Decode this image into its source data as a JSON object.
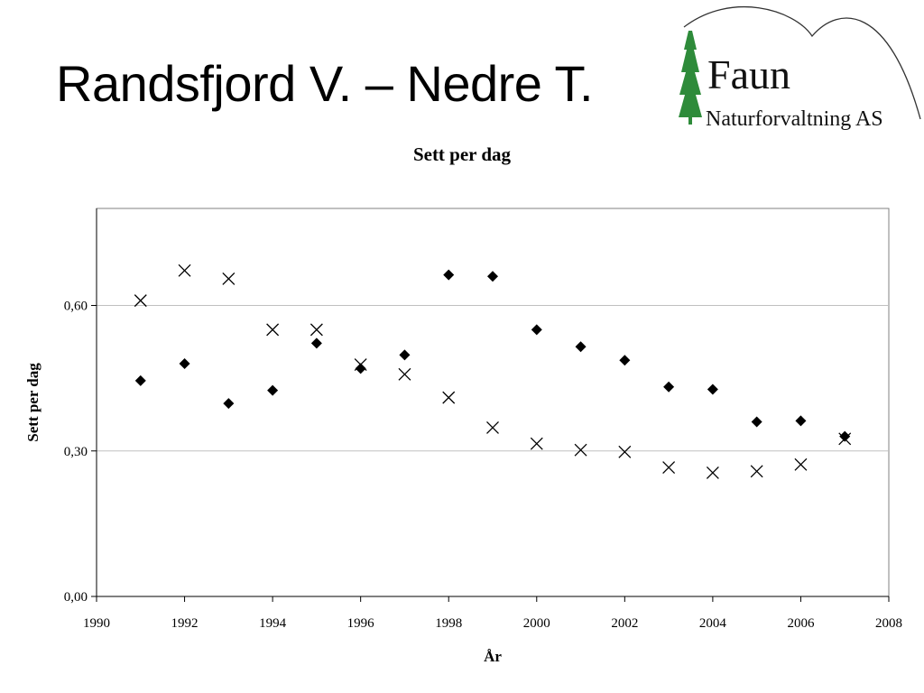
{
  "slide": {
    "title": "Randsfjord V. – Nedre T."
  },
  "logo": {
    "name": "Faun",
    "subtitle": "Naturforvaltning AS"
  },
  "chart_data": {
    "type": "scatter",
    "title": "Sett per dag",
    "xlabel": "År",
    "ylabel": "Sett per dag",
    "xlim": [
      1990,
      2008
    ],
    "ylim": [
      0,
      0.8
    ],
    "x_ticks": [
      "1990",
      "1992",
      "1994",
      "1996",
      "1998",
      "2000",
      "2002",
      "2004",
      "2006",
      "2008"
    ],
    "y_ticks": [
      "0,00",
      "0,30",
      "0,60"
    ],
    "grid": "horizontal",
    "legend": "none",
    "series": [
      {
        "marker": "diamond",
        "color": "#000000",
        "points": [
          {
            "x": 1991,
            "y": 0.445
          },
          {
            "x": 1992,
            "y": 0.48
          },
          {
            "x": 1993,
            "y": 0.398
          },
          {
            "x": 1994,
            "y": 0.425
          },
          {
            "x": 1995,
            "y": 0.522
          },
          {
            "x": 1996,
            "y": 0.47
          },
          {
            "x": 1997,
            "y": 0.498
          },
          {
            "x": 1998,
            "y": 0.663
          },
          {
            "x": 1999,
            "y": 0.66
          },
          {
            "x": 2000,
            "y": 0.55
          },
          {
            "x": 2001,
            "y": 0.515
          },
          {
            "x": 2002,
            "y": 0.487
          },
          {
            "x": 2003,
            "y": 0.432
          },
          {
            "x": 2004,
            "y": 0.427
          },
          {
            "x": 2005,
            "y": 0.36
          },
          {
            "x": 2006,
            "y": 0.362
          },
          {
            "x": 2007,
            "y": 0.33
          }
        ]
      },
      {
        "marker": "x",
        "color": "#000000",
        "points": [
          {
            "x": 1991,
            "y": 0.61
          },
          {
            "x": 1992,
            "y": 0.672
          },
          {
            "x": 1993,
            "y": 0.655
          },
          {
            "x": 1994,
            "y": 0.55
          },
          {
            "x": 1995,
            "y": 0.55
          },
          {
            "x": 1996,
            "y": 0.478
          },
          {
            "x": 1997,
            "y": 0.458
          },
          {
            "x": 1998,
            "y": 0.41
          },
          {
            "x": 1999,
            "y": 0.348
          },
          {
            "x": 2000,
            "y": 0.315
          },
          {
            "x": 2001,
            "y": 0.302
          },
          {
            "x": 2002,
            "y": 0.298
          },
          {
            "x": 2003,
            "y": 0.266
          },
          {
            "x": 2004,
            "y": 0.255
          },
          {
            "x": 2005,
            "y": 0.258
          },
          {
            "x": 2006,
            "y": 0.272
          },
          {
            "x": 2007,
            "y": 0.325
          }
        ]
      }
    ]
  },
  "colors": {
    "marker": "#000000",
    "gridline": "#c0c0c0",
    "plot_border": "#808080",
    "tree": "#2e8b3a"
  }
}
